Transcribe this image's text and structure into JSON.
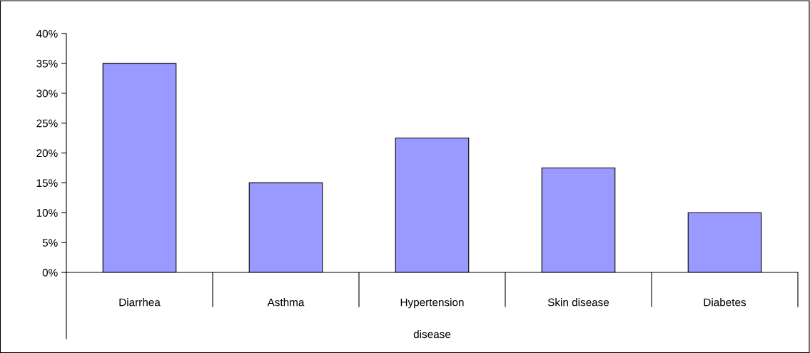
{
  "chart_data": {
    "type": "bar",
    "xlabel": "disease",
    "categories": [
      "Diarrhea",
      "Asthma",
      "Hypertension",
      "Skin disease",
      "Diabetes"
    ],
    "values": [
      35,
      15,
      22.5,
      17.5,
      10
    ],
    "color": "#9999ff",
    "ylim": [
      0,
      40
    ],
    "yticks": [
      {
        "value": 0,
        "label": "0%"
      },
      {
        "value": 5,
        "label": "5%"
      },
      {
        "value": 10,
        "label": "10%"
      },
      {
        "value": 15,
        "label": "15%"
      },
      {
        "value": 20,
        "label": "20%"
      },
      {
        "value": 25,
        "label": "25%"
      },
      {
        "value": 30,
        "label": "30%"
      },
      {
        "value": 35,
        "label": "35%"
      },
      {
        "value": 40,
        "label": "40%"
      }
    ],
    "grid": false,
    "legend": false
  }
}
